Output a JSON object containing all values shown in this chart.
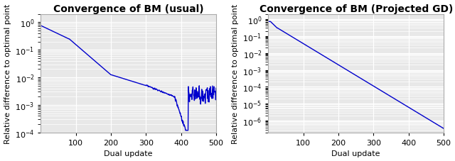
{
  "title1": "Convergence of BM (usual)",
  "title2": "Convergence of BM (Projected GD)",
  "xlabel": "Dual update",
  "ylabel": "Relative difference to optimal point",
  "xlim": [
    0,
    500
  ],
  "ylim1": [
    0.0001,
    2.0
  ],
  "ylim2": [
    2e-07,
    2.0
  ],
  "line_color": "#0000CC",
  "line_width": 1.0,
  "bg_color": "#e8e8e8",
  "grid_color": "#ffffff",
  "title_fontsize": 10,
  "label_fontsize": 8,
  "tick_fontsize": 8
}
